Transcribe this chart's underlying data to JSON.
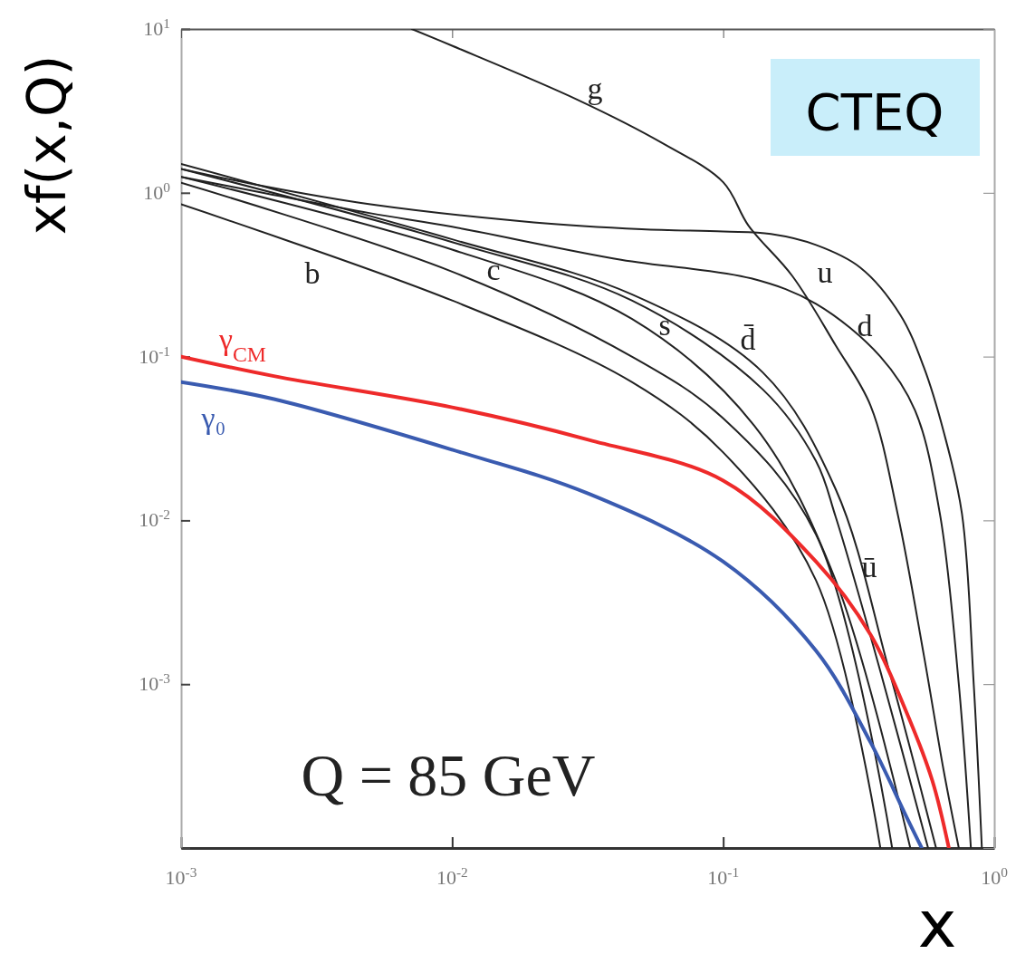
{
  "chart_data": {
    "type": "line",
    "xlabel": "x",
    "ylabel": "xf(x,Q)",
    "log": "xy",
    "line_style": "solid",
    "xlim": [
      0.001,
      1
    ],
    "ylim": [
      0.0001,
      10
    ],
    "xticks": [
      {
        "value": 0.001,
        "label": "10$^{-3}$"
      },
      {
        "value": 0.01,
        "label": "10$^{-2}$"
      },
      {
        "value": 0.1,
        "label": "10$^{-1}$"
      },
      {
        "value": 1,
        "label": "10$^{0}$"
      }
    ],
    "yticks": [
      {
        "value": 0.0001,
        "label": null
      },
      {
        "value": 0.001,
        "label": "10$^{-3}$"
      },
      {
        "value": 0.01,
        "label": "10$^{-2}$"
      },
      {
        "value": 0.1,
        "label": "10$^{-1}$"
      },
      {
        "value": 1,
        "label": "10$^{0}$"
      },
      {
        "value": 10,
        "label": "10$^{1}$"
      }
    ],
    "annotations": [
      "Q = 85 GeV",
      "CTEQ"
    ],
    "series": [
      {
        "name": "g",
        "color": "#222222",
        "x": [
          0.0071,
          0.01,
          0.029,
          0.06,
          0.1,
          0.124,
          0.18,
          0.26,
          0.35,
          0.44,
          0.55,
          0.65,
          0.74
        ],
        "values": [
          10,
          7.9,
          3.7,
          2,
          1.16,
          0.63,
          0.31,
          0.117,
          0.05,
          0.011,
          0.0015,
          0.0003,
          0.0001
        ]
      },
      {
        "name": "u",
        "color": "#222222",
        "x": [
          0.001,
          0.002,
          0.005,
          0.02,
          0.05,
          0.1,
          0.15,
          0.22,
          0.32,
          0.45,
          0.55,
          0.65,
          0.76,
          0.84,
          0.9
        ],
        "values": [
          1.4,
          1.1,
          0.85,
          0.66,
          0.6,
          0.58,
          0.56,
          0.48,
          0.35,
          0.18,
          0.086,
          0.035,
          0.011,
          0.001,
          0.0001
        ]
      },
      {
        "name": "d",
        "color": "#222222",
        "x": [
          0.001,
          0.002,
          0.005,
          0.01,
          0.042,
          0.127,
          0.22,
          0.38,
          0.51,
          0.63,
          0.74,
          0.82
        ],
        "values": [
          1.25,
          1,
          0.75,
          0.62,
          0.39,
          0.3,
          0.21,
          0.1,
          0.047,
          0.011,
          0.001,
          0.0001
        ]
      },
      {
        "name": "ū",
        "color": "#222222",
        "x": [
          0.001,
          0.01,
          0.046,
          0.14,
          0.22,
          0.26,
          0.38,
          0.57
        ],
        "values": [
          1.4,
          0.5,
          0.22,
          0.063,
          0.023,
          0.0105,
          0.0012,
          0.0001
        ]
      },
      {
        "name": "d̄",
        "color": "#222222",
        "x": [
          0.001,
          0.01,
          0.046,
          0.14,
          0.26,
          0.41,
          0.61
        ],
        "values": [
          1.5,
          0.52,
          0.24,
          0.08,
          0.0155,
          0.0012,
          0.0001
        ]
      },
      {
        "name": "s",
        "color": "#222222",
        "x": [
          0.001,
          0.01,
          0.046,
          0.13,
          0.26,
          0.49
        ],
        "values": [
          1.25,
          0.45,
          0.17,
          0.038,
          0.0043,
          0.0001
        ]
      },
      {
        "name": "c",
        "color": "#222222",
        "x": [
          0.001,
          0.01,
          0.046,
          0.1,
          0.22,
          0.42
        ],
        "values": [
          1.15,
          0.33,
          0.1,
          0.042,
          0.0082,
          0.0001
        ]
      },
      {
        "name": "b",
        "color": "#222222",
        "x": [
          0.001,
          0.01,
          0.046,
          0.1,
          0.22,
          0.38
        ],
        "values": [
          0.85,
          0.22,
          0.07,
          0.026,
          0.0043,
          0.0001
        ]
      },
      {
        "name": "γ$_{CM}$",
        "color": "#ee2a2a",
        "x": [
          0.001,
          0.0022,
          0.01,
          0.032,
          0.1,
          0.22,
          0.35,
          0.47,
          0.59,
          0.68
        ],
        "values": [
          0.1,
          0.076,
          0.049,
          0.031,
          0.0175,
          0.0056,
          0.002,
          0.0007,
          0.00026,
          0.0001
        ]
      },
      {
        "name": "γ₀",
        "color": "#3a5bb0",
        "x": [
          0.001,
          0.0022,
          0.01,
          0.032,
          0.1,
          0.22,
          0.35,
          0.47,
          0.54
        ],
        "values": [
          0.07,
          0.055,
          0.027,
          0.0145,
          0.0056,
          0.0016,
          0.00044,
          0.00016,
          0.0001
        ]
      }
    ]
  }
}
